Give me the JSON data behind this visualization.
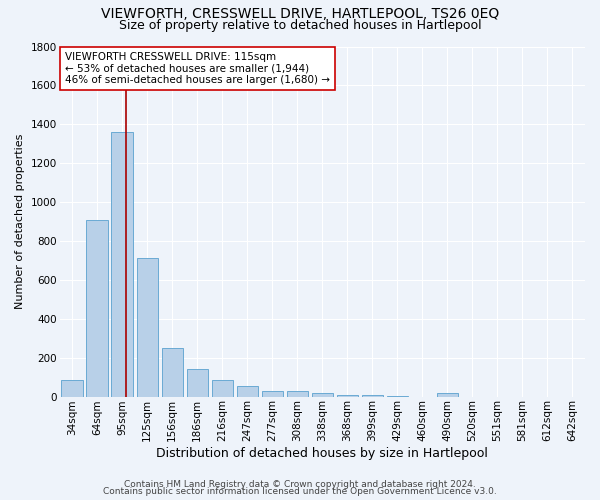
{
  "title": "VIEWFORTH, CRESSWELL DRIVE, HARTLEPOOL, TS26 0EQ",
  "subtitle": "Size of property relative to detached houses in Hartlepool",
  "xlabel": "Distribution of detached houses by size in Hartlepool",
  "ylabel": "Number of detached properties",
  "footer_line1": "Contains HM Land Registry data © Crown copyright and database right 2024.",
  "footer_line2": "Contains public sector information licensed under the Open Government Licence v3.0.",
  "bar_labels": [
    "34sqm",
    "64sqm",
    "95sqm",
    "125sqm",
    "156sqm",
    "186sqm",
    "216sqm",
    "247sqm",
    "277sqm",
    "308sqm",
    "338sqm",
    "368sqm",
    "399sqm",
    "429sqm",
    "460sqm",
    "490sqm",
    "520sqm",
    "551sqm",
    "581sqm",
    "612sqm",
    "642sqm"
  ],
  "bar_values": [
    83,
    910,
    1360,
    710,
    248,
    143,
    83,
    55,
    30,
    30,
    18,
    8,
    8,
    5,
    0,
    20,
    0,
    0,
    0,
    0,
    0
  ],
  "bar_color": "#b8d0e8",
  "bar_edgecolor": "#6aaad4",
  "bar_linewidth": 0.7,
  "bg_color": "#eef3fa",
  "grid_color": "#ffffff",
  "vline_color": "#aa0000",
  "annotation_text": "VIEWFORTH CRESSWELL DRIVE: 115sqm\n← 53% of detached houses are smaller (1,944)\n46% of semi-detached houses are larger (1,680) →",
  "annotation_box_edgecolor": "#cc0000",
  "annotation_box_facecolor": "#ffffff",
  "ylim": [
    0,
    1800
  ],
  "yticks": [
    0,
    200,
    400,
    600,
    800,
    1000,
    1200,
    1400,
    1600,
    1800
  ],
  "title_fontsize": 10,
  "subtitle_fontsize": 9,
  "xlabel_fontsize": 9,
  "ylabel_fontsize": 8,
  "tick_fontsize": 7.5,
  "annotation_fontsize": 7.5,
  "footer_fontsize": 6.5
}
